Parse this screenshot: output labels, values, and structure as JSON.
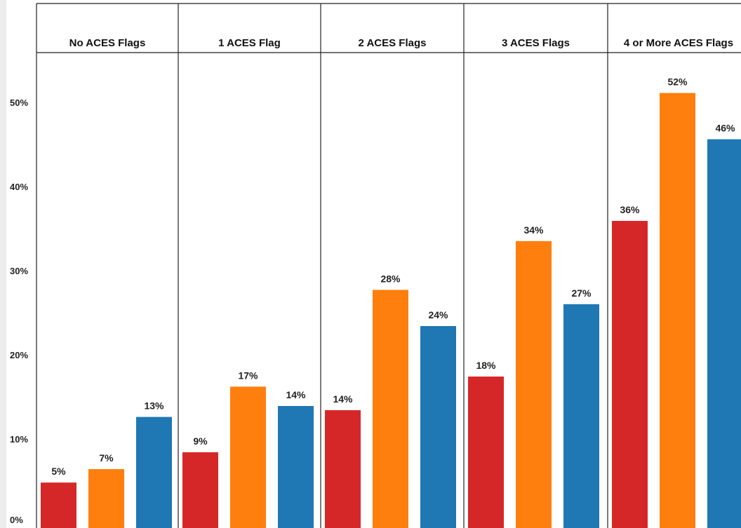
{
  "chart_data": {
    "type": "bar",
    "layout": "faceted-columns",
    "panels": [
      "No ACES Flags",
      "1 ACES Flag",
      "2 ACES Flags",
      "3 ACES Flags",
      "4 or More ACES Flags"
    ],
    "series": [
      {
        "name": "",
        "color": "#d62728",
        "values": [
          5.4,
          9.0,
          14.0,
          18.0,
          36.5
        ],
        "labels": [
          "5%",
          "9%",
          "14%",
          "18%",
          "36%"
        ]
      },
      {
        "name": "",
        "color": "#ff7f0e",
        "values": [
          7.0,
          16.8,
          28.3,
          34.1,
          51.7
        ],
        "labels": [
          "7%",
          "17%",
          "28%",
          "34%",
          "52%"
        ]
      },
      {
        "name": "",
        "color": "#1f77b4",
        "values": [
          13.2,
          14.5,
          24.0,
          26.6,
          46.2
        ],
        "labels": [
          "13%",
          "14%",
          "24%",
          "27%",
          "46%"
        ]
      }
    ],
    "y_ticks": [
      {
        "value": 0,
        "label": "0%"
      },
      {
        "value": 10,
        "label": "10%"
      },
      {
        "value": 20,
        "label": "20%"
      },
      {
        "value": 30,
        "label": "30%"
      },
      {
        "value": 40,
        "label": "40%"
      },
      {
        "value": 50,
        "label": "50%"
      }
    ],
    "ylim": [
      0,
      60
    ],
    "grid": false,
    "legend": "none",
    "title": "",
    "xlabel": "",
    "ylabel": ""
  }
}
